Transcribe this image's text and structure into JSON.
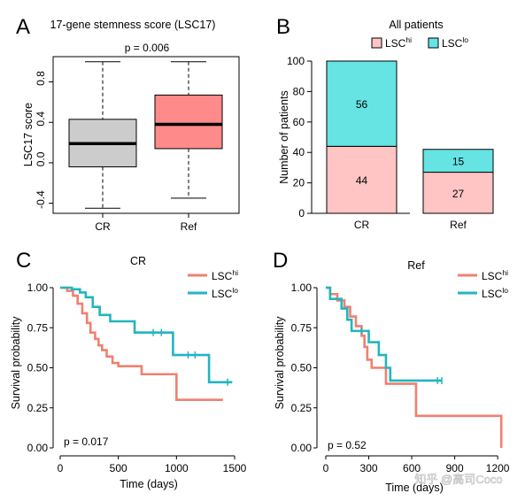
{
  "chart_data": [
    {
      "panel": "A",
      "type": "boxplot",
      "title": "17-gene stemness score (LSC17)",
      "annotation": "p = 0.006",
      "ylabel": "LSC17 score",
      "ylim": [
        -0.5,
        1.05
      ],
      "yticks": [
        "-0.4",
        "0.0",
        "0.4",
        "0.8"
      ],
      "ytick_values": [
        -0.4,
        0.0,
        0.4,
        0.8
      ],
      "categories": [
        "CR",
        "Ref"
      ],
      "boxes": [
        {
          "category": "CR",
          "color": "#cccccc",
          "whisker_low": -0.45,
          "q1": -0.04,
          "median": 0.19,
          "q3": 0.43,
          "whisker_high": 1.0
        },
        {
          "category": "Ref",
          "color": "#ff8a8a",
          "whisker_low": -0.35,
          "q1": 0.14,
          "median": 0.38,
          "q3": 0.67,
          "whisker_high": 1.0
        }
      ]
    },
    {
      "panel": "B",
      "type": "stacked_bar",
      "title": "All patients",
      "ylabel": "Number of patients",
      "ylim": [
        0,
        100
      ],
      "yticks": [
        "0",
        "20",
        "40",
        "60",
        "80",
        "100"
      ],
      "ytick_values": [
        0,
        20,
        40,
        60,
        80,
        100
      ],
      "categories": [
        "CR",
        "Ref"
      ],
      "series": [
        {
          "name": "LSC",
          "sup": "hi",
          "color": "#ffc4c4",
          "values": [
            44,
            27
          ],
          "labels": [
            "44",
            "27"
          ]
        },
        {
          "name": "LSC",
          "sup": "lo",
          "color": "#66e3e3",
          "values": [
            56,
            15
          ],
          "labels": [
            "56",
            "15"
          ]
        }
      ]
    },
    {
      "panel": "C",
      "type": "line",
      "subtype": "kaplan-meier",
      "title": "CR",
      "annotation": "p = 0.017",
      "xlabel": "Time (days)",
      "ylabel": "Survival probability",
      "xlim": [
        0,
        1500
      ],
      "ylim": [
        0,
        1
      ],
      "xticks": [
        "0",
        "500",
        "1000",
        "1500"
      ],
      "xtick_values": [
        0,
        500,
        1000,
        1500
      ],
      "yticks": [
        "0.00",
        "0.25",
        "0.50",
        "0.75",
        "1.00"
      ],
      "ytick_values": [
        0,
        0.25,
        0.5,
        0.75,
        1.0
      ],
      "legend_position": "top-right",
      "series": [
        {
          "name": "LSC",
          "sup": "hi",
          "color": "#f08070",
          "x": [
            0,
            60,
            110,
            150,
            190,
            230,
            260,
            300,
            330,
            360,
            400,
            450,
            500,
            700,
            1000,
            1400
          ],
          "y": [
            1.0,
            0.98,
            0.95,
            0.9,
            0.84,
            0.78,
            0.72,
            0.68,
            0.64,
            0.61,
            0.57,
            0.53,
            0.51,
            0.46,
            0.3,
            0.3
          ],
          "censor_x": [],
          "censor_y": []
        },
        {
          "name": "LSC",
          "sup": "lo",
          "color": "#22b5be",
          "x": [
            0,
            100,
            170,
            220,
            280,
            340,
            430,
            640,
            970,
            1280,
            1480
          ],
          "y": [
            1.0,
            0.99,
            0.97,
            0.94,
            0.88,
            0.83,
            0.79,
            0.72,
            0.58,
            0.41,
            0.41
          ],
          "censor_x": [
            800,
            870,
            1100,
            1160,
            1440
          ],
          "censor_y": [
            0.72,
            0.72,
            0.58,
            0.58,
            0.41
          ]
        }
      ]
    },
    {
      "panel": "D",
      "type": "line",
      "subtype": "kaplan-meier",
      "title": "Ref",
      "annotation": "p = 0.52",
      "xlabel": "Time (days)",
      "ylabel": "Survival probability",
      "xlim": [
        0,
        1230
      ],
      "ylim": [
        0,
        1
      ],
      "xticks": [
        "0",
        "300",
        "600",
        "900",
        "1200"
      ],
      "xtick_values": [
        0,
        300,
        600,
        900,
        1200
      ],
      "yticks": [
        "0.00",
        "0.25",
        "0.50",
        "0.75",
        "1.00"
      ],
      "ytick_values": [
        0,
        0.25,
        0.5,
        0.75,
        1.0
      ],
      "legend_position": "top-right",
      "series": [
        {
          "name": "LSC",
          "sup": "hi",
          "color": "#f08070",
          "x": [
            0,
            30,
            80,
            130,
            170,
            210,
            250,
            270,
            290,
            320,
            420,
            600,
            630,
            1220,
            1225
          ],
          "y": [
            1.0,
            0.96,
            0.92,
            0.88,
            0.82,
            0.76,
            0.7,
            0.63,
            0.55,
            0.5,
            0.4,
            0.4,
            0.2,
            0.2,
            0.0
          ],
          "censor_x": [],
          "censor_y": []
        },
        {
          "name": "LSC",
          "sup": "lo",
          "color": "#22b5be",
          "x": [
            0,
            30,
            110,
            150,
            180,
            300,
            370,
            420,
            450,
            500,
            810
          ],
          "y": [
            1.0,
            0.93,
            0.87,
            0.8,
            0.73,
            0.66,
            0.58,
            0.5,
            0.42,
            0.42,
            0.42
          ],
          "censor_x": [
            250,
            780,
            810
          ],
          "censor_y": [
            0.73,
            0.42,
            0.42
          ]
        }
      ]
    }
  ],
  "watermark": "知乎 @高司Coco"
}
